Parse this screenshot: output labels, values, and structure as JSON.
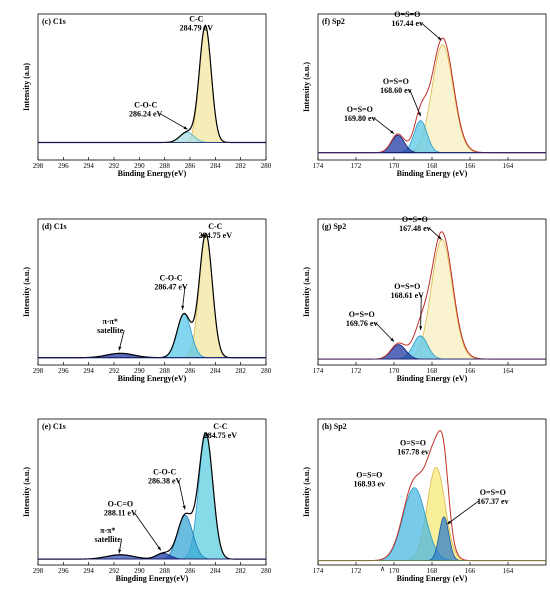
{
  "chart_data": [
    {
      "id": "c",
      "type": "line",
      "panel_label": "(c) C1s",
      "xlabel": "Binding Energy(eV)",
      "ylabel": "Intensity (a.u)",
      "xlim": [
        298,
        280
      ],
      "x_ticks": [
        298,
        296,
        294,
        292,
        290,
        288,
        286,
        284,
        282,
        280
      ],
      "ylim": [
        0,
        1.0
      ],
      "baseline": 0.12,
      "peaks": [
        {
          "name": "C-C",
          "center": 284.79,
          "height": 0.8,
          "fwhm": 1.1,
          "fill": "#f3e6a0",
          "stroke": "#d9b84a"
        },
        {
          "name": "C-O-C",
          "center": 286.24,
          "height": 0.07,
          "fwhm": 1.3,
          "fill": "#a9dde6",
          "stroke": "#4fb3c9"
        }
      ],
      "annotations": [
        {
          "lines": [
            "C-C",
            "284.79 eV"
          ],
          "x": 285.5,
          "y": 0.95,
          "ax": 284.8,
          "ay": 0.86,
          "arrow": false
        },
        {
          "lines": [
            "C-O-C",
            "286.24 eV"
          ],
          "x": 289.5,
          "y": 0.36,
          "ax": 286.2,
          "ay": 0.21,
          "arrow": true
        }
      ]
    },
    {
      "id": "f",
      "type": "line",
      "panel_label": "(f) Sp2",
      "xlabel": "Binding Energy (eV)",
      "ylabel": "Intensity (a.u.)",
      "xlim": [
        174,
        162
      ],
      "x_ticks": [
        174,
        172,
        170,
        168,
        166,
        164
      ],
      "ylim": [
        0,
        1.0
      ],
      "baseline": 0.05,
      "peaks": [
        {
          "name": "O=S=O",
          "center": 167.44,
          "height": 0.74,
          "fwhm": 1.3,
          "fill": "#f7efbf",
          "stroke": "#d9b84a"
        },
        {
          "name": "O=S=O",
          "center": 168.6,
          "height": 0.22,
          "fwhm": 0.8,
          "fill": "#5bc8e8",
          "stroke": "#2a9ac8"
        },
        {
          "name": "O=S=O",
          "center": 169.8,
          "height": 0.12,
          "fwhm": 0.8,
          "fill": "#1f3aa0",
          "stroke": "#10207a"
        }
      ],
      "envelope": {
        "extra_width": 1.4,
        "stroke": "#c0302a"
      },
      "annotations": [
        {
          "lines": [
            "O=S=O",
            "167.44 ev"
          ],
          "x": 169.3,
          "y": 0.98,
          "ax": 167.5,
          "ay": 0.82,
          "arrow": true
        },
        {
          "lines": [
            "O=S=O",
            "168.60 ev"
          ],
          "x": 169.9,
          "y": 0.52,
          "ax": 168.6,
          "ay": 0.3,
          "arrow": true
        },
        {
          "lines": [
            "O=S=O",
            "169.80 ev"
          ],
          "x": 171.8,
          "y": 0.33,
          "ax": 170.0,
          "ay": 0.18,
          "arrow": true
        }
      ]
    },
    {
      "id": "d",
      "type": "line",
      "panel_label": "(d) C1s",
      "xlabel": "Binding Energy(eV)",
      "ylabel": "Intensity (a.u.)",
      "xlim": [
        298,
        280
      ],
      "x_ticks": [
        298,
        296,
        294,
        292,
        290,
        288,
        286,
        284,
        282,
        280
      ],
      "ylim": [
        0,
        1.0
      ],
      "baseline": 0.05,
      "peaks": [
        {
          "name": "C-C",
          "center": 284.75,
          "height": 0.85,
          "fwhm": 1.2,
          "fill": "#f3e6a0",
          "stroke": "#d9b84a"
        },
        {
          "name": "C-O-C",
          "center": 286.47,
          "height": 0.3,
          "fwhm": 1.3,
          "fill": "#5bc8e8",
          "stroke": "#2a9ac8"
        },
        {
          "name": "π-π* satellite",
          "center": 291.5,
          "height": 0.03,
          "fwhm": 2.5,
          "fill": "#1f3aa0",
          "stroke": "#10207a"
        }
      ],
      "annotations": [
        {
          "lines": [
            "C-C",
            "284.75 eV"
          ],
          "x": 284.0,
          "y": 0.93,
          "ax": 284.8,
          "ay": 0.88,
          "arrow": true
        },
        {
          "lines": [
            "C-O-C",
            "286.47 eV"
          ],
          "x": 287.5,
          "y": 0.58,
          "ax": 286.6,
          "ay": 0.38,
          "arrow": true
        },
        {
          "lines": [
            "π-π*",
            "satellite"
          ],
          "x": 292.3,
          "y": 0.28,
          "ax": 291.6,
          "ay": 0.1,
          "arrow": true
        }
      ]
    },
    {
      "id": "g",
      "type": "line",
      "panel_label": "(g) Sp2",
      "xlabel": "Binding Energy (eV)",
      "ylabel": "Intensity (a.u.)",
      "xlim": [
        174,
        162
      ],
      "x_ticks": [
        174,
        172,
        170,
        168,
        166,
        164
      ],
      "ylim": [
        0,
        1.0
      ],
      "baseline": 0.04,
      "peaks": [
        {
          "name": "O=S=O",
          "center": 167.48,
          "height": 0.82,
          "fwhm": 1.3,
          "fill": "#f7efbf",
          "stroke": "#d9b84a"
        },
        {
          "name": "O=S=O",
          "center": 168.61,
          "height": 0.16,
          "fwhm": 0.9,
          "fill": "#5bc8e8",
          "stroke": "#2a9ac8"
        },
        {
          "name": "O=S=O",
          "center": 169.76,
          "height": 0.1,
          "fwhm": 0.9,
          "fill": "#1f3aa0",
          "stroke": "#10207a"
        }
      ],
      "envelope": {
        "extra_width": 1.5,
        "stroke": "#c0302a"
      },
      "annotations": [
        {
          "lines": [
            "O=S=O",
            "167.48 ev"
          ],
          "x": 168.9,
          "y": 0.98,
          "ax": 167.5,
          "ay": 0.86,
          "arrow": true
        },
        {
          "lines": [
            "O=S=O",
            "168.61 eV"
          ],
          "x": 169.3,
          "y": 0.52,
          "ax": 168.6,
          "ay": 0.24,
          "arrow": true
        },
        {
          "lines": [
            "O=S=O",
            "169.76 ev"
          ],
          "x": 171.7,
          "y": 0.33,
          "ax": 170.0,
          "ay": 0.16,
          "arrow": true
        }
      ]
    },
    {
      "id": "e",
      "type": "line",
      "panel_label": "(e) C1s",
      "xlabel": "Bingding Energy(eV)",
      "ylabel": "Intensity (a.u.)",
      "xlim": [
        298,
        280
      ],
      "x_ticks": [
        298,
        296,
        294,
        292,
        290,
        288,
        286,
        284,
        282,
        280
      ],
      "ylim": [
        0,
        1.0
      ],
      "baseline": 0.04,
      "peaks": [
        {
          "name": "C-C",
          "center": 284.75,
          "height": 0.86,
          "fwhm": 1.3,
          "fill": "#5fcfe0",
          "stroke": "#2a9ac8"
        },
        {
          "name": "C-O-C",
          "center": 286.38,
          "height": 0.3,
          "fwhm": 1.4,
          "fill": "#3aa7d6",
          "stroke": "#1a7ab0"
        },
        {
          "name": "O-C=O",
          "center": 288.11,
          "height": 0.04,
          "fwhm": 1.3,
          "fill": "#1f3aa0",
          "stroke": "#10207a"
        },
        {
          "name": "π-π* satellite",
          "center": 291.5,
          "height": 0.03,
          "fwhm": 2.5,
          "fill": "#3a55b8",
          "stroke": "#10207a"
        }
      ],
      "annotations": [
        {
          "lines": [
            "C-C",
            "284.75 eV"
          ],
          "x": 283.6,
          "y": 0.93,
          "ax": 284.8,
          "ay": 0.88,
          "arrow": true
        },
        {
          "lines": [
            "C-O-C",
            "286.38 eV"
          ],
          "x": 288.0,
          "y": 0.62,
          "ax": 286.4,
          "ay": 0.38,
          "arrow": true
        },
        {
          "lines": [
            "O-C=O",
            "288.11 eV"
          ],
          "x": 291.5,
          "y": 0.4,
          "ax": 288.3,
          "ay": 0.1,
          "arrow": true
        },
        {
          "lines": [
            "π-π*",
            "satellite"
          ],
          "x": 292.5,
          "y": 0.22,
          "ax": 291.6,
          "ay": 0.08,
          "arrow": true
        }
      ]
    },
    {
      "id": "h",
      "type": "line",
      "panel_label": "(h) Sp2",
      "xlabel": "Binding Energy (eV)",
      "ylabel": "Intensity (a.u.)",
      "xlim": [
        174,
        162
      ],
      "x_ticks": [
        174,
        172,
        170,
        168,
        166,
        164
      ],
      "ylim": [
        0,
        1.0
      ],
      "baseline": 0.03,
      "peaks": [
        {
          "name": "O=S=O",
          "center": 167.78,
          "height": 0.64,
          "fwhm": 1.1,
          "fill": "#f7ea7a",
          "stroke": "#d9b84a"
        },
        {
          "name": "O=S=O",
          "center": 168.93,
          "height": 0.5,
          "fwhm": 1.4,
          "fill": "#4bb8e0",
          "stroke": "#2a9ac8"
        },
        {
          "name": "O=S=O",
          "center": 167.37,
          "height": 0.3,
          "fwhm": 0.6,
          "fill": "#2f7fc8",
          "stroke": "#1a5aa0"
        }
      ],
      "envelope": {
        "extra_width": 1.2,
        "stroke": "#c0302a",
        "baseline_stroke": "#6b8a3a"
      },
      "annotations": [
        {
          "lines": [
            "O=S=O",
            "167.78 ev"
          ],
          "x": 169.0,
          "y": 0.82,
          "ax": 168.0,
          "ay": 0.78,
          "arrow": false
        },
        {
          "lines": [
            "O=S=O",
            "168.93 ev"
          ],
          "x": 171.3,
          "y": 0.6,
          "ax": 169.2,
          "ay": 0.48,
          "arrow": false
        },
        {
          "lines": [
            "O=S=O",
            "167.37 ev"
          ],
          "x": 164.8,
          "y": 0.48,
          "ax": 167.2,
          "ay": 0.28,
          "arrow": true
        }
      ],
      "extra_mark": {
        "text": "∧",
        "x": 170.6,
        "y": -0.04
      }
    }
  ]
}
